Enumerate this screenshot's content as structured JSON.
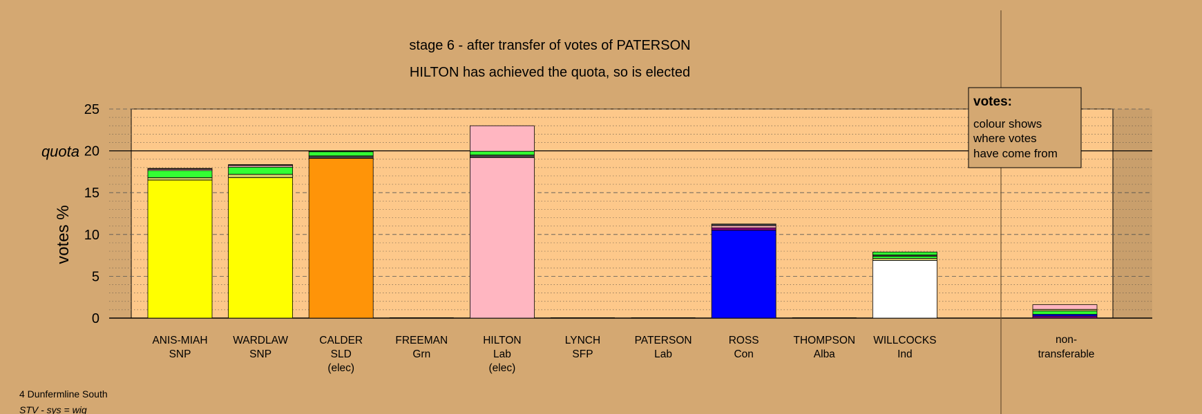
{
  "chart_data": {
    "type": "bar",
    "stacked": true,
    "title": "stage 6 - after transfer of votes of PATERSON",
    "subtitle": "HILTON has achieved the quota, so is elected",
    "ylabel": "votes %",
    "ylim": [
      0,
      25
    ],
    "yticks": [
      0,
      5,
      10,
      15,
      20,
      25
    ],
    "quota": 20,
    "quota_label": "quota",
    "grid": true,
    "candidates": [
      {
        "name": "ANIS-MIAH",
        "party": "SNP",
        "status": "",
        "segments": [
          {
            "color": "#ffff00",
            "value": 16.5
          },
          {
            "color": "#c8c864",
            "value": 0.3
          },
          {
            "color": "#33ff33",
            "value": 0.85
          },
          {
            "color": "#ffb6c1",
            "value": 0.15
          },
          {
            "color": "#222222",
            "value": 0.1
          }
        ]
      },
      {
        "name": "WARDLAW",
        "party": "SNP",
        "status": "",
        "segments": [
          {
            "color": "#ffff00",
            "value": 16.8
          },
          {
            "color": "#c8c864",
            "value": 0.4
          },
          {
            "color": "#33ff33",
            "value": 0.85
          },
          {
            "color": "#ffb6c1",
            "value": 0.2
          },
          {
            "color": "#222222",
            "value": 0.1
          }
        ]
      },
      {
        "name": "CALDER",
        "party": "SLD",
        "status": "(elec)",
        "segments": [
          {
            "color": "#ff9408",
            "value": 19.1
          },
          {
            "color": "#444444",
            "value": 0.3
          },
          {
            "color": "#33ff33",
            "value": 0.5
          },
          {
            "color": "#222222",
            "value": 0.1
          }
        ]
      },
      {
        "name": "FREEMAN",
        "party": "Grn",
        "status": "",
        "segments": []
      },
      {
        "name": "HILTON",
        "party": "Lab",
        "status": "(elec)",
        "segments": [
          {
            "color": "#ffb6c1",
            "value": 19.2
          },
          {
            "color": "#444444",
            "value": 0.3
          },
          {
            "color": "#33ff33",
            "value": 0.45
          },
          {
            "color": "#ffb6c1",
            "value": 3.05
          }
        ]
      },
      {
        "name": "LYNCH",
        "party": "SFP",
        "status": "",
        "segments": []
      },
      {
        "name": "PATERSON",
        "party": "Lab",
        "status": "",
        "segments": []
      },
      {
        "name": "ROSS",
        "party": "Con",
        "status": "",
        "segments": [
          {
            "color": "#0000ff",
            "value": 10.5
          },
          {
            "color": "#800080",
            "value": 0.3
          },
          {
            "color": "#ffb6c1",
            "value": 0.25
          },
          {
            "color": "#444444",
            "value": 0.2
          }
        ]
      },
      {
        "name": "THOMPSON",
        "party": "Alba",
        "status": "",
        "segments": []
      },
      {
        "name": "WILLCOCKS",
        "party": "Ind",
        "status": "",
        "segments": [
          {
            "color": "#ffffff",
            "value": 6.9
          },
          {
            "color": "#c8c864",
            "value": 0.25
          },
          {
            "color": "#33ff33",
            "value": 0.25
          },
          {
            "color": "#444444",
            "value": 0.15
          },
          {
            "color": "#33ff33",
            "value": 0.35
          }
        ]
      }
    ],
    "nontransferable": {
      "label_line1": "non-",
      "label_line2": "transferable",
      "segments": [
        {
          "color": "#800080",
          "value": 0.25
        },
        {
          "color": "#0000ff",
          "value": 0.2
        },
        {
          "color": "#33ff33",
          "value": 0.4
        },
        {
          "color": "#c8c864",
          "value": 0.2
        },
        {
          "color": "#ffb6c1",
          "value": 0.55
        }
      ]
    },
    "legend": {
      "title": "votes:",
      "lines": [
        "colour shows",
        "where votes",
        "have come from"
      ],
      "placement": "top-right"
    }
  },
  "footer": {
    "ward": "4 Dunfermline South",
    "system": "STV - sys = wig"
  },
  "colors": {
    "background": "#d4a872",
    "plot_area": "#fdc88a",
    "frame": "#000000"
  }
}
